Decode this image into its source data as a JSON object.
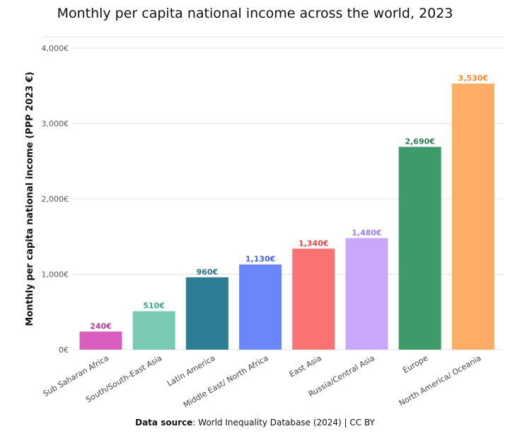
{
  "chart_data": {
    "type": "bar",
    "title": "Monthly per capita national income across the world, 2023",
    "ylabel": "Monthly per capita national income (PPP 2023 €)",
    "xlabel": "",
    "categories": [
      "Sub Saharan Africa",
      "South/South-East Asia",
      "Latin America",
      "Middle East/ North Africa",
      "East Asia",
      "Russia/Central Asia",
      "Europe",
      "North America/ Oceania"
    ],
    "values": [
      240,
      510,
      960,
      1130,
      1340,
      1480,
      2690,
      3530
    ],
    "value_labels": [
      "240€",
      "510€",
      "960€",
      "1,130€",
      "1,340€",
      "1,480€",
      "2,690€",
      "3,530€"
    ],
    "colors": [
      "#d85dbf",
      "#79c9b4",
      "#2d7d95",
      "#6b86f8",
      "#f97373",
      "#c9a7fb",
      "#3d9a6b",
      "#ffad66"
    ],
    "label_colors": [
      "#b33d9a",
      "#3aa98a",
      "#2a6f86",
      "#4a63e0",
      "#e04848",
      "#a07de8",
      "#2e7d56",
      "#f28b30"
    ],
    "ylim": [
      0,
      4000
    ],
    "yticks": [
      0,
      1000,
      2000,
      3000,
      4000
    ],
    "ytick_labels": [
      "0€",
      "1,000€",
      "2,000€",
      "3,000€",
      "4,000€"
    ],
    "grid": true
  },
  "source": {
    "label": "Data source",
    "text": ": World Inequality Database (2024) | CC BY"
  }
}
